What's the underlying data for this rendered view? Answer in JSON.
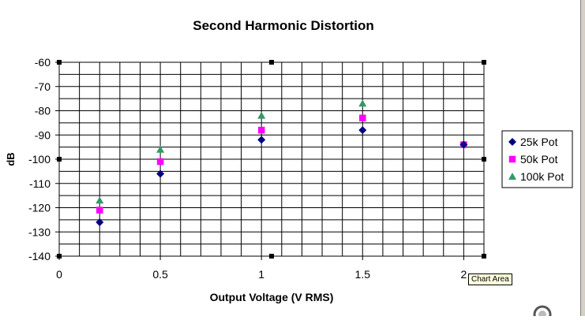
{
  "chart_data": {
    "type": "scatter",
    "title": "Second Harmonic Distortion",
    "xlabel": "Output Voltage (V RMS)",
    "ylabel": "dB",
    "xlim": [
      0,
      2.1
    ],
    "ylim": [
      -140,
      -60
    ],
    "x_ticks": [
      0,
      0.5,
      1,
      1.5,
      2
    ],
    "x_tick_labels": [
      "0",
      "0.5",
      "1",
      "1.5",
      "2"
    ],
    "y_ticks": [
      -60,
      -70,
      -80,
      -90,
      -100,
      -110,
      -120,
      -130,
      -140
    ],
    "y_tick_labels": [
      "-60",
      "-70",
      "-80",
      "-90",
      "-100",
      "-110",
      "-120",
      "-130",
      "-140"
    ],
    "grid": true,
    "legend_position": "right",
    "series": [
      {
        "name": "25k Pot",
        "marker": "diamond",
        "color": "#000080",
        "x": [
          0.2,
          0.5,
          1,
          1.5,
          2
        ],
        "y": [
          -126,
          -106,
          -92,
          -88,
          -94
        ]
      },
      {
        "name": "50k Pot",
        "marker": "square",
        "color": "#ff00ff",
        "x": [
          0.2,
          0.5,
          1,
          1.5,
          2
        ],
        "y": [
          -121,
          -101,
          -88,
          -83,
          -94
        ]
      },
      {
        "name": "100k Pot",
        "marker": "triangle",
        "color": "#339966",
        "x": [
          0.2,
          0.5,
          1,
          1.5,
          2
        ],
        "y": [
          -117,
          -96,
          -82,
          -77,
          -94
        ]
      }
    ]
  },
  "tooltip": {
    "text": "Chart Area"
  }
}
